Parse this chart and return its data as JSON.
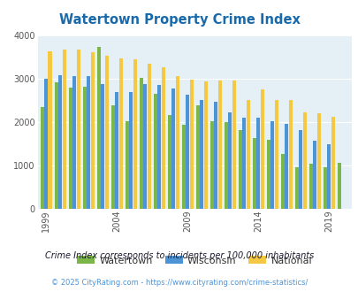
{
  "title": "Watertown Property Crime Index",
  "years": [
    1999,
    2000,
    2001,
    2002,
    2003,
    2004,
    2005,
    2006,
    2007,
    2008,
    2009,
    2010,
    2011,
    2012,
    2013,
    2014,
    2015,
    2016,
    2017,
    2018,
    2019,
    2020
  ],
  "watertown": [
    2350,
    2920,
    2800,
    2820,
    3720,
    2380,
    2020,
    3020,
    2650,
    2160,
    1930,
    2380,
    2010,
    2000,
    1810,
    1620,
    1580,
    1260,
    960,
    1040,
    960,
    1050
  ],
  "wisconsin": [
    2990,
    3080,
    3060,
    3050,
    2880,
    2680,
    2680,
    2870,
    2850,
    2770,
    2630,
    2510,
    2460,
    2210,
    2090,
    2090,
    2010,
    1960,
    1820,
    1570,
    1480,
    null
  ],
  "national": [
    3620,
    3660,
    3660,
    3600,
    3530,
    3470,
    3440,
    3350,
    3260,
    3060,
    2970,
    2940,
    2960,
    2950,
    2510,
    2740,
    2510,
    2500,
    2210,
    2200,
    2110,
    null
  ],
  "watertown_color": "#7ab648",
  "wisconsin_color": "#4d94d6",
  "national_color": "#f5c842",
  "plot_bg": "#e4f0f6",
  "title_color": "#1a6aab",
  "tick_color": "#555555",
  "subtitle_color": "#1a1a2e",
  "footer_color": "#4d94d6",
  "xtick_labels": [
    "1999",
    "2004",
    "2009",
    "2014",
    "2019"
  ],
  "xtick_year_positions": [
    1999,
    2004,
    2009,
    2014,
    2019
  ],
  "ylim": [
    0,
    4000
  ],
  "yticks": [
    0,
    1000,
    2000,
    3000,
    4000
  ],
  "footer_text": "© 2025 CityRating.com - https://www.cityrating.com/crime-statistics/",
  "subtitle_text": "Crime Index corresponds to incidents per 100,000 inhabitants",
  "legend_labels": [
    "Watertown",
    "Wisconsin",
    "National"
  ]
}
